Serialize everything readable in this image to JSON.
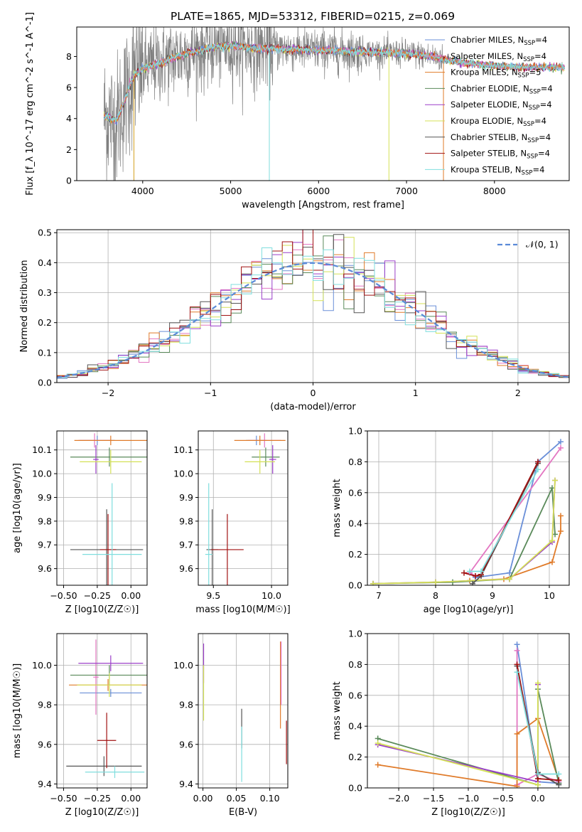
{
  "figure": {
    "title": "PLATE=1865, MJD=53312, FIBERID=0215, z=0.069",
    "series_names": [
      "Chabrier MILES, N_SSP=4",
      "Salpeter MILES, N_SSP=4",
      "Kroupa MILES, N_SSP=5",
      "Chabrier ELODIE, N_SSP=4",
      "Salpeter ELODIE, N_SSP=4",
      "Kroupa ELODIE, N_SSP=4",
      "Chabrier STELIB, N_SSP=4",
      "Salpeter STELIB, N_SSP=4",
      "Kroupa STELIB, N_SSP=4"
    ],
    "series_colors": [
      "#6a8fd8",
      "#e377c2",
      "#e07b2a",
      "#5a8a5a",
      "#9b3fc9",
      "#d4e157",
      "#555555",
      "#a01010",
      "#7fdede"
    ]
  },
  "chart_data": [
    {
      "id": "spectrum",
      "type": "line",
      "xlabel": "wavelength [Angstrom, rest frame]",
      "ylabel": "Flux [f_λ 10^-17 erg cm^-2 s^-1 A^-1]",
      "xlim": [
        3250,
        8850
      ],
      "ylim": [
        0,
        9.9
      ],
      "xticks": [
        "4000",
        "5000",
        "6000",
        "7000",
        "8000"
      ],
      "yticks": [
        "0",
        "2",
        "4",
        "6",
        "8"
      ],
      "legend": "right",
      "legend_entries": [
        "Chabrier MILES, N",
        "Salpeter MILES, N",
        "Kroupa MILES, N",
        "Chabrier ELODIE, N",
        "Salpeter ELODIE, N",
        "Kroupa ELODIE, N",
        "Chabrier STELIB, N",
        "Salpeter STELIB, N",
        "Kroupa STELIB, N"
      ],
      "legend_subscript": "SSP",
      "legend_counts": [
        "=4",
        "=4",
        "=5",
        "=4",
        "=4",
        "=4",
        "=4",
        "=4",
        "=4"
      ],
      "continuum": {
        "x": [
          3560,
          3700,
          3900,
          4000,
          4100,
          4200,
          4300,
          4500,
          4800,
          5000,
          5300,
          5600,
          6000,
          6500,
          7000,
          7300,
          7500,
          7800,
          8000,
          8400,
          8800
        ],
        "y": [
          4.2,
          3.8,
          6.8,
          7.2,
          7.4,
          7.6,
          7.8,
          8.2,
          8.6,
          8.7,
          8.5,
          8.5,
          8.4,
          8.3,
          8.2,
          8.0,
          7.7,
          7.5,
          7.4,
          7.3,
          7.3
        ]
      }
    },
    {
      "id": "residuals",
      "type": "histogram",
      "xlabel": "(data-model)/error",
      "ylabel": "Normed distribution",
      "xlim": [
        -2.5,
        2.5
      ],
      "ylim": [
        0,
        0.51
      ],
      "xticks": [
        "−2",
        "−1",
        "0",
        "1",
        "2"
      ],
      "yticks": [
        "0.0",
        "0.1",
        "0.2",
        "0.3",
        "0.4",
        "0.5"
      ],
      "legend": "top-right",
      "gaussian_label": "𝒩(0, 1)",
      "grid": true
    },
    {
      "id": "age-vs-z",
      "type": "errorbar",
      "xlabel": "Z [log10(Z/Z☉)]",
      "ylabel": "age  [log10(age/yr)]",
      "xlim": [
        -0.55,
        0.12
      ],
      "ylim": [
        9.53,
        10.18
      ],
      "xticks": [
        "−0.50",
        "−0.25",
        "0.00"
      ],
      "yticks": [
        "9.6",
        "9.7",
        "9.8",
        "9.9",
        "10.0",
        "10.1"
      ],
      "points": [
        {
          "x": -0.25,
          "y": 10.14,
          "xerr": 0.13,
          "yerr": 0.02,
          "color": "#6a8fd8"
        },
        {
          "x": -0.27,
          "y": 10.14,
          "xerr": 0.12,
          "yerr": 0.03,
          "color": "#e377c2"
        },
        {
          "x": -0.15,
          "y": 10.14,
          "xerr": 0.27,
          "yerr": 0.02,
          "color": "#e07b2a"
        },
        {
          "x": -0.16,
          "y": 10.07,
          "xerr": 0.29,
          "yerr": 0.04,
          "color": "#5a8a5a"
        },
        {
          "x": -0.26,
          "y": 10.06,
          "xerr": 0.02,
          "yerr": 0.06,
          "color": "#9b3fc9"
        },
        {
          "x": -0.15,
          "y": 10.05,
          "xerr": 0.23,
          "yerr": 0.05,
          "color": "#d4e157"
        },
        {
          "x": -0.18,
          "y": 9.68,
          "xerr": 0.27,
          "yerr": 0.17,
          "color": "#555555"
        },
        {
          "x": -0.17,
          "y": 9.68,
          "xerr": 0.06,
          "yerr": 0.15,
          "color": "#a01010"
        },
        {
          "x": -0.14,
          "y": 9.66,
          "xerr": 0.22,
          "yerr": 0.3,
          "color": "#7fdede"
        }
      ]
    },
    {
      "id": "age-vs-mass",
      "type": "errorbar",
      "xlabel": "mass [log10(M/M☉)]",
      "ylabel": "",
      "xlim": [
        9.37,
        10.14
      ],
      "ylim": [
        9.53,
        10.18
      ],
      "xticks": [
        "9.5",
        "10.0"
      ],
      "yticks": [
        "9.6",
        "9.7",
        "9.8",
        "9.9",
        "10.0",
        "10.1"
      ],
      "points": [
        {
          "x": 9.87,
          "y": 10.14,
          "xerr": 0.09,
          "yerr": 0.02,
          "color": "#6a8fd8"
        },
        {
          "x": 9.94,
          "y": 10.14,
          "xerr": 0.14,
          "yerr": 0.03,
          "color": "#e377c2"
        },
        {
          "x": 9.9,
          "y": 10.14,
          "xerr": 0.22,
          "yerr": 0.02,
          "color": "#e07b2a"
        },
        {
          "x": 9.95,
          "y": 10.07,
          "xerr": 0.12,
          "yerr": 0.04,
          "color": "#5a8a5a"
        },
        {
          "x": 10.01,
          "y": 10.06,
          "xerr": 0.03,
          "yerr": 0.06,
          "color": "#9b3fc9"
        },
        {
          "x": 9.9,
          "y": 10.05,
          "xerr": 0.13,
          "yerr": 0.05,
          "color": "#d4e157"
        },
        {
          "x": 9.49,
          "y": 9.68,
          "xerr": 0.05,
          "yerr": 0.17,
          "color": "#555555"
        },
        {
          "x": 9.62,
          "y": 9.68,
          "xerr": 0.14,
          "yerr": 0.15,
          "color": "#a01010"
        },
        {
          "x": 9.46,
          "y": 9.66,
          "xerr": 0.03,
          "yerr": 0.3,
          "color": "#7fdede"
        }
      ]
    },
    {
      "id": "mass-weight-vs-age",
      "type": "line",
      "xlabel": "age  [log10(age/yr)]",
      "ylabel": "mass weight",
      "xlim": [
        6.8,
        10.35
      ],
      "ylim": [
        0,
        1.0
      ],
      "xticks": [
        "7",
        "8",
        "9",
        "10"
      ],
      "yticks": [
        "0.0",
        "0.2",
        "0.4",
        "0.6",
        "0.8",
        "1.0"
      ],
      "series": [
        {
          "color": "#6a8fd8",
          "x": [
            8.7,
            9.3,
            9.8,
            10.2
          ],
          "y": [
            0.05,
            0.08,
            0.8,
            0.93
          ]
        },
        {
          "color": "#e377c2",
          "x": [
            8.7,
            8.6,
            10.2
          ],
          "y": [
            0.06,
            0.08,
            0.89
          ]
        },
        {
          "color": "#e07b2a",
          "x": [
            8.6,
            9.2,
            10.05,
            10.2,
            10.2
          ],
          "y": [
            0.03,
            0.04,
            0.15,
            0.35,
            0.45
          ]
        },
        {
          "color": "#5a8a5a",
          "x": [
            6.9,
            8.3,
            9.3,
            10.05,
            10.1
          ],
          "y": [
            0.01,
            0.02,
            0.04,
            0.63,
            0.33
          ]
        },
        {
          "color": "#9b3fc9",
          "x": [
            6.9,
            8.0,
            9.3,
            10.05,
            10.1
          ],
          "y": [
            0.01,
            0.02,
            0.04,
            0.28,
            0.68
          ]
        },
        {
          "color": "#d4e157",
          "x": [
            6.9,
            8.0,
            9.3,
            10.05,
            10.1
          ],
          "y": [
            0.01,
            0.02,
            0.04,
            0.29,
            0.68
          ]
        },
        {
          "color": "#555555",
          "x": [
            8.65,
            8.8,
            9.8
          ],
          "y": [
            0.01,
            0.06,
            0.79
          ]
        },
        {
          "color": "#a01010",
          "x": [
            8.5,
            8.7,
            8.8,
            9.8
          ],
          "y": [
            0.08,
            0.06,
            0.07,
            0.8
          ]
        },
        {
          "color": "#7fdede",
          "x": [
            8.6,
            8.8,
            9.8
          ],
          "y": [
            0.09,
            0.09,
            0.75
          ]
        }
      ]
    },
    {
      "id": "mass-vs-z",
      "type": "errorbar",
      "xlabel": "Z [log10(Z/Z☉)]",
      "ylabel": "mass [log10(M/M☉)]",
      "xlim": [
        -0.55,
        0.12
      ],
      "ylim": [
        9.38,
        10.16
      ],
      "xticks": [
        "−0.50",
        "−0.25",
        "0.00"
      ],
      "yticks": [
        "9.4",
        "9.6",
        "9.8",
        "10.0"
      ],
      "points": [
        {
          "x": -0.15,
          "y": 9.86,
          "xerr": 0.23,
          "yerr": 0.02,
          "color": "#6a8fd8"
        },
        {
          "x": -0.26,
          "y": 9.94,
          "xerr": 0.02,
          "yerr": 0.19,
          "color": "#e377c2"
        },
        {
          "x": -0.17,
          "y": 9.9,
          "xerr": 0.29,
          "yerr": 0.03,
          "color": "#e07b2a"
        },
        {
          "x": -0.16,
          "y": 9.95,
          "xerr": 0.29,
          "yerr": 0.05,
          "color": "#5a8a5a"
        },
        {
          "x": -0.15,
          "y": 10.01,
          "xerr": 0.24,
          "yerr": 0.04,
          "color": "#9b3fc9"
        },
        {
          "x": -0.16,
          "y": 9.9,
          "xerr": 0.24,
          "yerr": 0.06,
          "color": "#d4e157"
        },
        {
          "x": -0.2,
          "y": 9.49,
          "xerr": 0.28,
          "yerr": 0.05,
          "color": "#555555"
        },
        {
          "x": -0.18,
          "y": 9.62,
          "xerr": 0.07,
          "yerr": 0.14,
          "color": "#a01010"
        },
        {
          "x": -0.12,
          "y": 9.46,
          "xerr": 0.22,
          "yerr": 0.03,
          "color": "#7fdede"
        }
      ]
    },
    {
      "id": "mass-vs-ebv",
      "type": "errorbar",
      "xlabel": "E(B-V)",
      "ylabel": "",
      "xlim": [
        -0.007,
        0.127
      ],
      "ylim": [
        9.38,
        10.16
      ],
      "xticks": [
        "0.00",
        "0.05",
        "0.10"
      ],
      "yticks": [
        "9.4",
        "9.6",
        "9.8",
        "10.0"
      ],
      "points": [
        {
          "x": 0.001,
          "y": 10.01,
          "yerr": 0.1,
          "color": "#9b3fc9"
        },
        {
          "x": 0.001,
          "y": 9.86,
          "yerr": 0.14,
          "color": "#d4e157"
        },
        {
          "x": 0.058,
          "y": 9.68,
          "yerr": 0.1,
          "color": "#555555"
        },
        {
          "x": 0.058,
          "y": 9.55,
          "yerr": 0.14,
          "color": "#7fdede"
        },
        {
          "x": 0.116,
          "y": 9.9,
          "yerr": 0.22,
          "color": "#e07b2a"
        },
        {
          "x": 0.117,
          "y": 9.96,
          "yerr": 0.16,
          "color": "#e377c2"
        },
        {
          "x": 0.125,
          "y": 9.61,
          "yerr": 0.11,
          "color": "#a01010"
        }
      ]
    },
    {
      "id": "mass-weight-vs-z",
      "type": "line",
      "xlabel": "Z [log10(Z/Z☉)]",
      "ylabel": "mass weight",
      "xlim": [
        -2.45,
        0.45
      ],
      "ylim": [
        0,
        1.0
      ],
      "xticks": [
        "−2.0",
        "−1.5",
        "−1.0",
        "−0.5",
        "0.0"
      ],
      "yticks": [
        "0.0",
        "0.2",
        "0.4",
        "0.6",
        "0.8",
        "1.0"
      ],
      "series": [
        {
          "color": "#6a8fd8",
          "x": [
            -0.3,
            0.0,
            0.3
          ],
          "y": [
            0.93,
            0.04,
            0.03
          ]
        },
        {
          "color": "#e377c2",
          "x": [
            -0.3,
            -0.3,
            0.0,
            0.3
          ],
          "y": [
            0.89,
            0.02,
            0.09,
            0.04
          ]
        },
        {
          "color": "#e07b2a",
          "x": [
            -2.3,
            -0.3,
            -0.3,
            0.0,
            0.3
          ],
          "y": [
            0.15,
            0.01,
            0.35,
            0.45,
            0.05
          ]
        },
        {
          "color": "#5a8a5a",
          "x": [
            -2.3,
            0.0,
            0.0,
            0.3
          ],
          "y": [
            0.32,
            0.02,
            0.64,
            0.03
          ]
        },
        {
          "color": "#9b3fc9",
          "x": [
            -2.3,
            0.0,
            0.0
          ],
          "y": [
            0.28,
            0.04,
            0.67
          ]
        },
        {
          "color": "#d4e157",
          "x": [
            -2.3,
            0.0,
            0.0
          ],
          "y": [
            0.29,
            0.02,
            0.68
          ]
        },
        {
          "color": "#555555",
          "x": [
            -0.3,
            0.0,
            0.3
          ],
          "y": [
            0.79,
            0.1,
            0.02
          ]
        },
        {
          "color": "#a01010",
          "x": [
            -0.3,
            0.0,
            0.3
          ],
          "y": [
            0.8,
            0.06,
            0.05
          ]
        },
        {
          "color": "#7fdede",
          "x": [
            -0.3,
            0.0,
            0.3
          ],
          "y": [
            0.75,
            0.09,
            0.09
          ]
        }
      ]
    }
  ]
}
